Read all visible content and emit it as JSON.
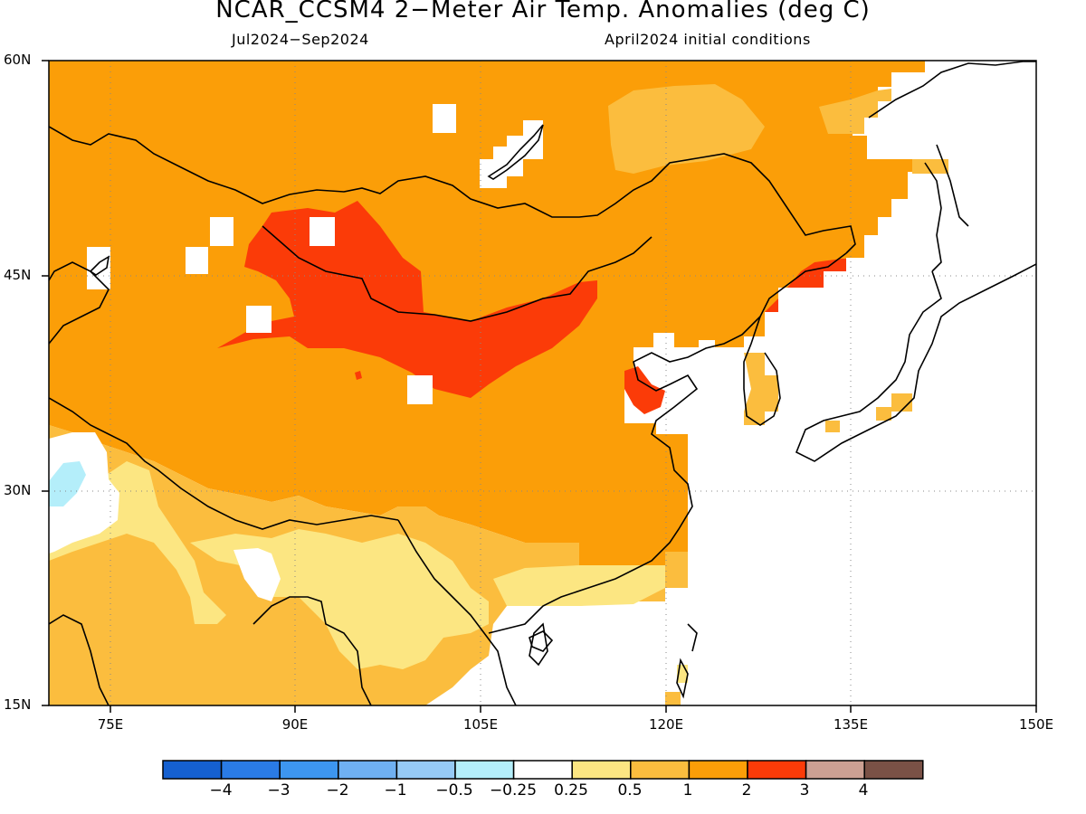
{
  "title": "NCAR_CCSM4 2−Meter Air Temp. Anomalies (deg C)",
  "subtitle_left": "Jul2024−Sep2024",
  "subtitle_right": "April2024 initial conditions",
  "lat_labels": [
    "60N",
    "45N",
    "30N",
    "15N"
  ],
  "lon_labels": [
    "75E",
    "90E",
    "105E",
    "120E",
    "135E",
    "150E"
  ],
  "colorbar": {
    "labels": [
      "−4",
      "−3",
      "−2",
      "−1",
      "−0.5",
      "−0.25",
      "0.25",
      "0.5",
      "1",
      "2",
      "3",
      "4"
    ],
    "colors": [
      "#1560d0",
      "#2a7be6",
      "#3d96f0",
      "#6fb0f2",
      "#96caf6",
      "#b4eefa",
      "#ffffff",
      "#fce682",
      "#fbbd3e",
      "#fb9e08",
      "#fb3b08",
      "#cca093",
      "#7a5146"
    ]
  },
  "map": {
    "lon_range": [
      70,
      150
    ],
    "lat_range": [
      15,
      60
    ],
    "gridlines": "dotted",
    "fields": {
      "warm_0_25_0_5": "#fce682",
      "warm_0_5_1": "#fbbd3e",
      "warm_1_2": "#fb9e08",
      "warm_2_3": "#fb3b08",
      "cool_minus_0_5": "#b4eefa"
    }
  }
}
